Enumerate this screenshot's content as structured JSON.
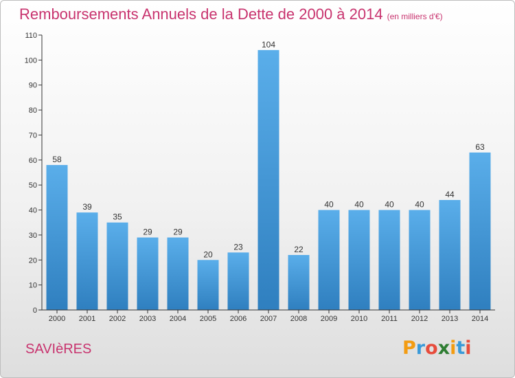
{
  "chart_data": {
    "type": "bar",
    "title": "Remboursements Annuels de la Dette de 2000 à 2014",
    "unit_note": "(en milliers d'€)",
    "categories": [
      "2000",
      "2001",
      "2002",
      "2003",
      "2004",
      "2005",
      "2006",
      "2007",
      "2008",
      "2009",
      "2010",
      "2011",
      "2012",
      "2013",
      "2014"
    ],
    "values": [
      58,
      39,
      35,
      29,
      29,
      20,
      23,
      104,
      22,
      40,
      40,
      40,
      40,
      44,
      63
    ],
    "xlabel": "",
    "ylabel": "",
    "ylim": [
      0,
      110
    ],
    "yticks": [
      0,
      10,
      20,
      30,
      40,
      50,
      60,
      70,
      80,
      90,
      100,
      110
    ],
    "grid": false,
    "bar_color": "#4a9fe0"
  },
  "footer": {
    "commune": "SAVIèRES",
    "logo_letters": [
      "P",
      "r",
      "o",
      "x",
      "i",
      "t",
      "i"
    ],
    "logo_colors": [
      "#f39c12",
      "#3a9ad9",
      "#e74c3c",
      "#2e7d32",
      "#f39c12",
      "#3a9ad9",
      "#e74c3c"
    ]
  }
}
